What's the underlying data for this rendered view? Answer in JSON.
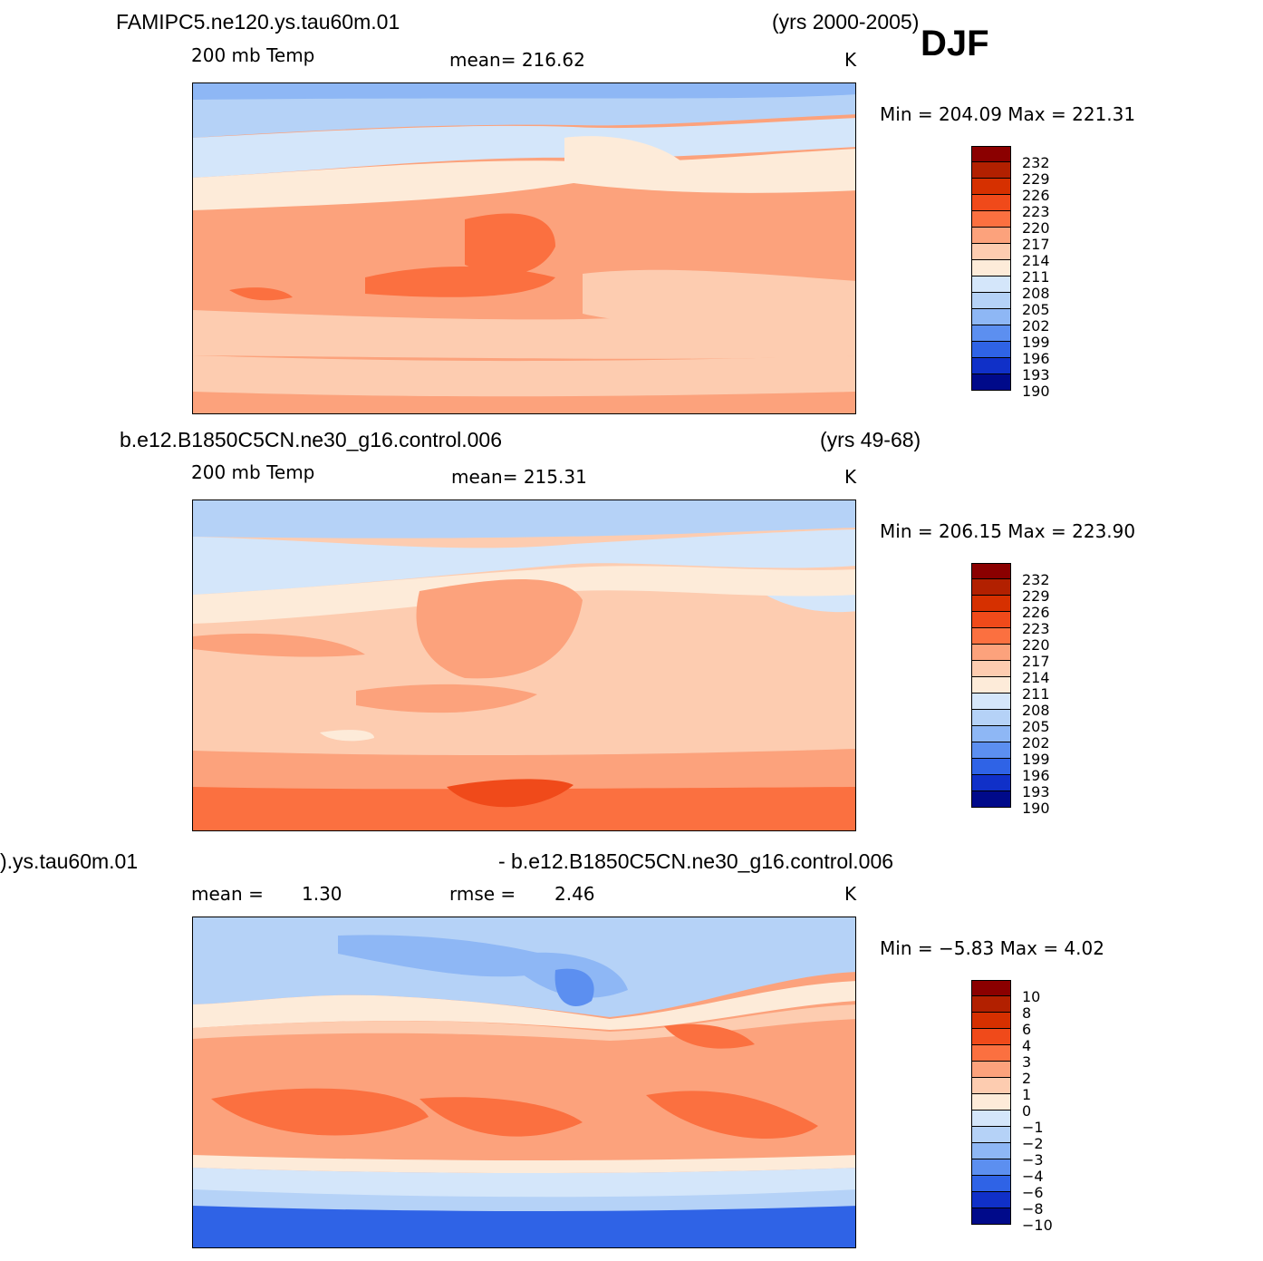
{
  "season": "DJF",
  "units": "K",
  "panels": [
    {
      "id": "test",
      "case_name": "FAMIPC5.ne120.ys.tau60m.01",
      "years": "(yrs 2000-2005)",
      "variable": "200 mb Temp",
      "stat_label": "mean=  216.62",
      "minmax": "Min  =  204.09  Max  =  221.31",
      "colorbar_labels": [
        "232",
        "229",
        "226",
        "223",
        "220",
        "217",
        "214",
        "211",
        "208",
        "205",
        "202",
        "199",
        "196",
        "193",
        "190"
      ]
    },
    {
      "id": "control",
      "case_name": "b.e12.B1850C5CN.ne30_g16.control.006",
      "years": "(yrs 49-68)",
      "variable": "200 mb Temp",
      "stat_label": "mean=  215.31",
      "minmax": "Min  =  206.15  Max  =  223.90",
      "colorbar_labels": [
        "232",
        "229",
        "226",
        "223",
        "220",
        "217",
        "214",
        "211",
        "208",
        "205",
        "202",
        "199",
        "196",
        "193",
        "190"
      ]
    },
    {
      "id": "difference",
      "case_left": ").ys.tau60m.01",
      "case_right": "- b.e12.B1850C5CN.ne30_g16.control.006",
      "mean_label": "mean  =",
      "mean_value": "1.30",
      "rmse_label": "rmse  =",
      "rmse_value": "2.46",
      "minmax": "Min  =     −5.83  Max  =       4.02",
      "colorbar_labels": [
        "10",
        "8",
        "6",
        "4",
        "3",
        "2",
        "1",
        "0",
        "−1",
        "−2",
        "−3",
        "−4",
        "−6",
        "−8",
        "−10"
      ]
    }
  ],
  "colors": {
    "abs_scale": [
      "#8b0000",
      "#b22000",
      "#d63000",
      "#f04a1a",
      "#fb7040",
      "#fca27c",
      "#fdccb0",
      "#fdebd9",
      "#d4e6fa",
      "#b5d2f7",
      "#8eb7f5",
      "#5c8ff0",
      "#2f63e6",
      "#1030c8",
      "#000a8a"
    ],
    "diff_scale": [
      "#8b0000",
      "#b22000",
      "#d63000",
      "#f04a1a",
      "#fb7040",
      "#fca27c",
      "#fdccb0",
      "#fdebd9",
      "#d4e6fa",
      "#b5d2f7",
      "#8eb7f5",
      "#5c8ff0",
      "#2f63e6",
      "#1030c8",
      "#000a8a"
    ]
  }
}
